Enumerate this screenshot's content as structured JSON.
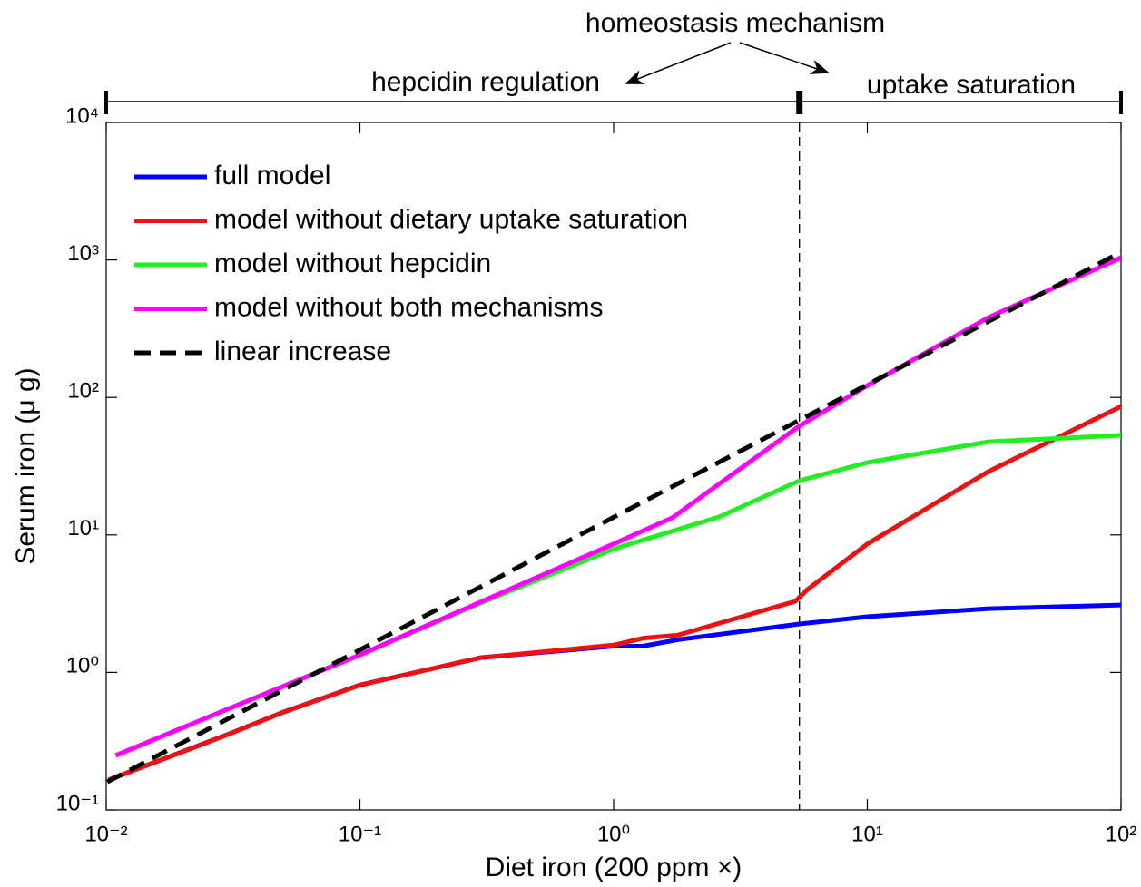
{
  "chart_data": {
    "type": "line",
    "xlabel": "Diet iron (200 ppm ×)",
    "ylabel": "Serum iron (μ g)",
    "xscale": "log",
    "yscale": "log",
    "xlim": [
      0.01,
      100
    ],
    "ylim": [
      0.1,
      10000
    ],
    "xticks": [
      {
        "value": 0.01,
        "label": "10⁻²"
      },
      {
        "value": 0.1,
        "label": "10⁻¹"
      },
      {
        "value": 1,
        "label": "10⁰"
      },
      {
        "value": 10,
        "label": "10¹"
      },
      {
        "value": 100,
        "label": "10²"
      }
    ],
    "yticks": [
      {
        "value": 0.1,
        "label": "10⁻¹"
      },
      {
        "value": 1,
        "label": "10⁰"
      },
      {
        "value": 10,
        "label": "10¹"
      },
      {
        "value": 100,
        "label": "10²"
      },
      {
        "value": 1000,
        "label": "10³"
      },
      {
        "value": 10000,
        "label": "10⁴"
      }
    ],
    "legend": "upper left",
    "threshold_x": 5.4,
    "annotations": {
      "mechanism": "homeostasis mechanism",
      "left_region": "hepcidin regulation",
      "right_region": "uptake saturation"
    },
    "series": [
      {
        "name": "full model",
        "color": "#0000ff",
        "dash": false,
        "x": [
          0.0102,
          0.03,
          0.05,
          0.1,
          0.3,
          1,
          1.3,
          1.8,
          5.4,
          10,
          30,
          100
        ],
        "values": [
          0.165,
          0.353,
          0.515,
          0.81,
          1.28,
          1.55,
          1.55,
          1.73,
          2.25,
          2.54,
          2.91,
          3.09
        ]
      },
      {
        "name": "model without dietary uptake saturation",
        "color": "#ee1111",
        "dash": false,
        "x": [
          0.0102,
          0.03,
          0.05,
          0.1,
          0.3,
          1,
          1.3,
          1.8,
          5.2,
          5.8,
          10,
          30,
          100
        ],
        "values": [
          0.165,
          0.353,
          0.515,
          0.81,
          1.28,
          1.58,
          1.77,
          1.87,
          3.29,
          4.0,
          8.6,
          28.9,
          86
        ]
      },
      {
        "name": "model without hepcidin",
        "color": "#22ee22",
        "dash": false,
        "x": [
          0.0109,
          0.03,
          0.1,
          0.3,
          1,
          2.6,
          5.4,
          10,
          30,
          100
        ],
        "values": [
          0.249,
          0.54,
          1.34,
          3.2,
          7.9,
          13.5,
          24.8,
          33.6,
          47.6,
          53
        ]
      },
      {
        "name": "model without both mechanisms",
        "color": "#ff00ff",
        "dash": false,
        "x": [
          0.0109,
          0.03,
          0.1,
          0.3,
          1,
          1.7,
          5.4,
          10,
          30,
          100
        ],
        "values": [
          0.249,
          0.54,
          1.34,
          3.26,
          8.6,
          13.3,
          62,
          122,
          382,
          1040
        ]
      },
      {
        "name": "linear increase",
        "color": "#000000",
        "dash": true,
        "x": [
          0.0101,
          100
        ],
        "values": [
          0.16,
          1140
        ]
      }
    ]
  }
}
